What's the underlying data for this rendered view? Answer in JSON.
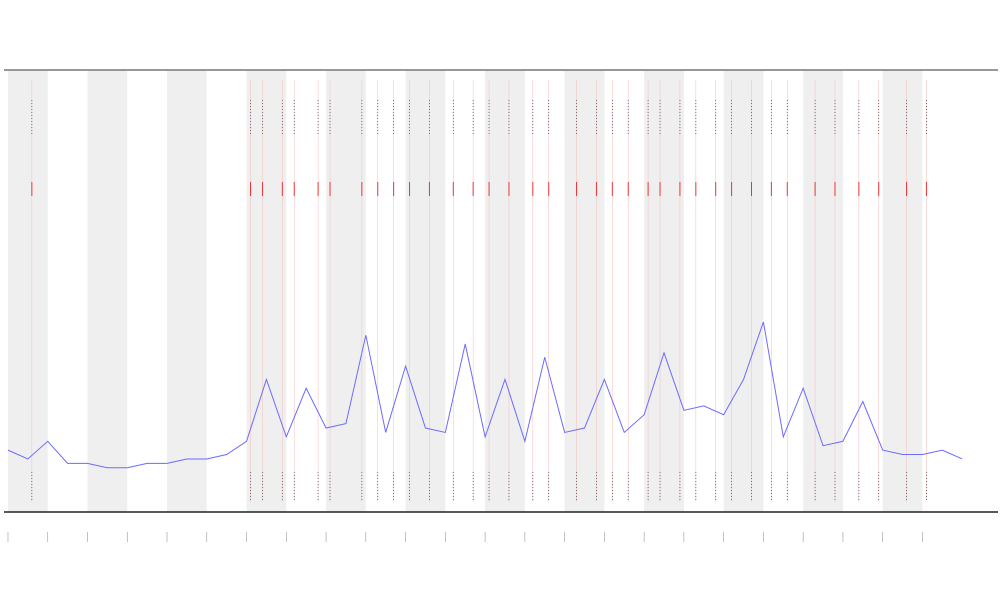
{
  "chart_data": {
    "type": "line",
    "x": [
      0,
      0.5,
      1,
      1.5,
      2,
      2.5,
      3,
      3.5,
      4,
      4.5,
      5,
      5.5,
      6,
      6.5,
      7,
      7.5,
      8,
      8.5,
      9,
      9.5,
      10,
      10.5,
      11,
      11.5,
      12,
      12.5,
      13,
      13.5,
      14,
      14.5,
      15,
      15.5,
      16,
      16.5,
      17,
      17.5,
      18,
      18.5,
      19,
      19.5,
      20,
      20.5,
      21,
      21.5,
      22,
      22.5,
      23,
      23.5,
      24
    ],
    "series": [
      {
        "color": "#6b6bff",
        "values": [
          14,
          12,
          16,
          11,
          11,
          10,
          10,
          11,
          11,
          12,
          12,
          13,
          16,
          30,
          17,
          28,
          19,
          20,
          40,
          18,
          33,
          19,
          18,
          38,
          17,
          30,
          16,
          35,
          18,
          19,
          30,
          18,
          22,
          36,
          23,
          24,
          22,
          30,
          43,
          17,
          28,
          15,
          16,
          25,
          14,
          13,
          13,
          14,
          12
        ]
      }
    ],
    "events": [
      0.6,
      6.1,
      6.4,
      6.9,
      7.2,
      7.8,
      8.1,
      8.9,
      9.3,
      9.7,
      10.1,
      10.6,
      11.2,
      11.7,
      12.1,
      12.6,
      13.2,
      13.6,
      14.3,
      14.8,
      15.2,
      15.6,
      16.1,
      16.4,
      16.9,
      17.3,
      17.8,
      18.2,
      18.7,
      19.2,
      19.6,
      20.3,
      20.8,
      21.4,
      21.9,
      22.6,
      23.1
    ],
    "xlim": [
      -0.1,
      24.9
    ],
    "ylim": [
      0,
      100
    ],
    "xticks": [
      0,
      1,
      2,
      3,
      4,
      5,
      6,
      7,
      8,
      9,
      10,
      11,
      12,
      13,
      14,
      15,
      16,
      17,
      18,
      19,
      20,
      21,
      22,
      23
    ],
    "shade_alternate": true
  }
}
